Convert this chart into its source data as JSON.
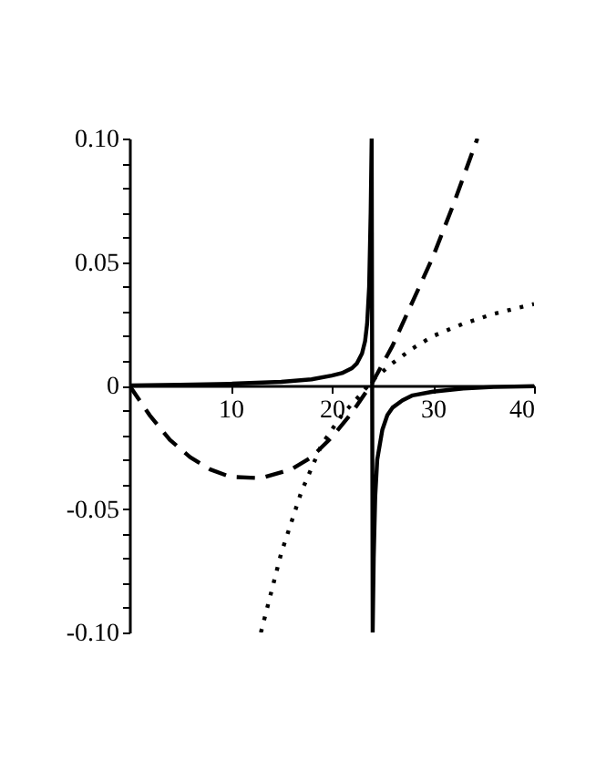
{
  "chart_data": {
    "type": "line",
    "xlim": [
      0,
      40
    ],
    "ylim": [
      -0.1,
      0.1
    ],
    "xticks": [
      10,
      20,
      30,
      40
    ],
    "yticks": [
      {
        "value": -0.1,
        "label": "-0.10"
      },
      {
        "value": -0.09,
        "label": null
      },
      {
        "value": -0.08,
        "label": null
      },
      {
        "value": -0.07,
        "label": null
      },
      {
        "value": -0.06,
        "label": null
      },
      {
        "value": -0.05,
        "label": "-0.05"
      },
      {
        "value": -0.04,
        "label": null
      },
      {
        "value": -0.03,
        "label": null
      },
      {
        "value": -0.02,
        "label": null
      },
      {
        "value": -0.01,
        "label": null
      },
      {
        "value": 0,
        "label": "0"
      },
      {
        "value": 0.01,
        "label": null
      },
      {
        "value": 0.02,
        "label": null
      },
      {
        "value": 0.03,
        "label": null
      },
      {
        "value": 0.04,
        "label": null
      },
      {
        "value": 0.05,
        "label": "0.05"
      },
      {
        "value": 0.06,
        "label": null
      },
      {
        "value": 0.07,
        "label": null
      },
      {
        "value": 0.08,
        "label": null
      },
      {
        "value": 0.09,
        "label": null
      },
      {
        "value": 0.1,
        "label": "0.10"
      }
    ],
    "grid": false,
    "marker": "none",
    "series": [
      {
        "color": "#000000",
        "line_style": "solid",
        "x": [
          0,
          5,
          10,
          15,
          18,
          20,
          21,
          22,
          22.5,
          23,
          23.3,
          23.5,
          23.7,
          23.85,
          23.95,
          24.05,
          24.15,
          24.3,
          24.5,
          25,
          25.5,
          26,
          27,
          28,
          30,
          33,
          36,
          40
        ],
        "values": [
          0,
          0.0003,
          0.0007,
          0.0015,
          0.0025,
          0.004,
          0.005,
          0.007,
          0.009,
          0.013,
          0.018,
          0.025,
          0.04,
          0.07,
          0.1,
          -0.1,
          -0.07,
          -0.045,
          -0.03,
          -0.018,
          -0.012,
          -0.009,
          -0.006,
          -0.004,
          -0.0025,
          -0.0012,
          -0.0006,
          -0.0003
        ]
      },
      {
        "color": "#000000",
        "line_style": "dashed",
        "x": [
          0,
          2,
          4,
          6,
          8,
          10,
          13,
          16,
          18,
          20,
          22,
          24,
          26,
          28,
          30,
          32,
          34.4
        ],
        "values": [
          0,
          -0.012,
          -0.022,
          -0.029,
          -0.034,
          -0.037,
          -0.0375,
          -0.034,
          -0.029,
          -0.021,
          -0.011,
          0.001,
          0.016,
          0.034,
          0.052,
          0.073,
          0.1
        ]
      },
      {
        "color": "#000000",
        "line_style": "dotted",
        "x": [
          13,
          15,
          17,
          19,
          21,
          23,
          24,
          26,
          28,
          30,
          33,
          36,
          40
        ],
        "values": [
          -0.1,
          -0.068,
          -0.043,
          -0.024,
          -0.012,
          -0.003,
          0.002,
          0.009,
          0.015,
          0.02,
          0.025,
          0.029,
          0.033
        ]
      }
    ]
  }
}
